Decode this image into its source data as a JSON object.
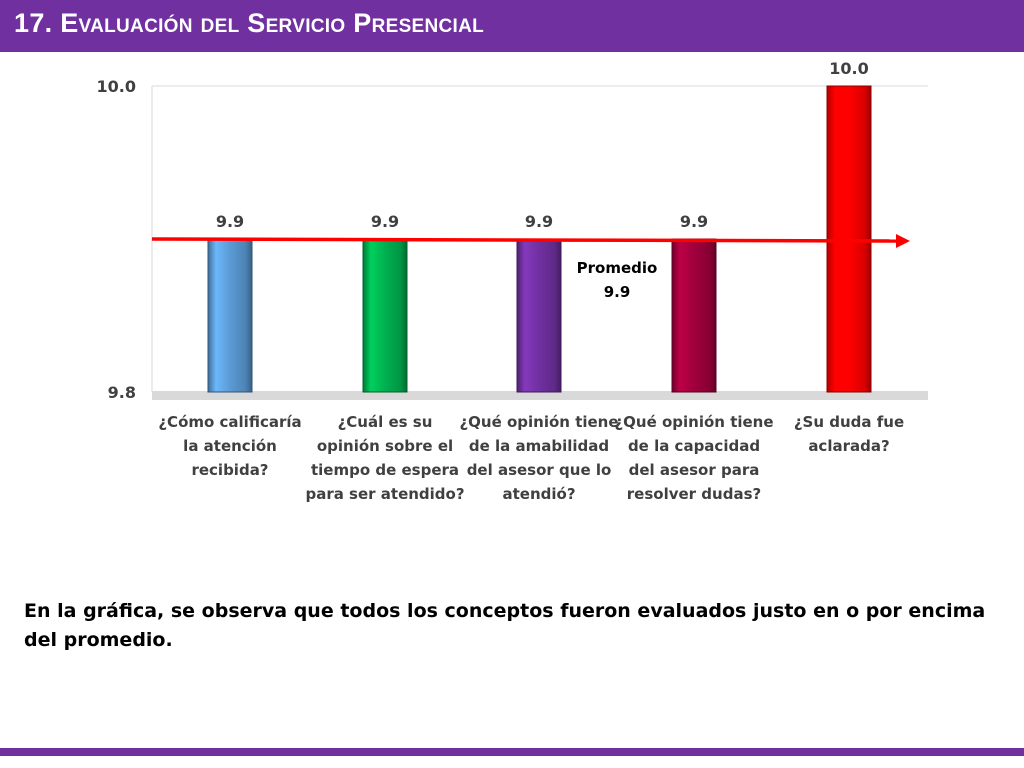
{
  "header": {
    "title": "17. Evaluación del Servicio Presencial"
  },
  "summary": "En la gráfica, se observa que todos los conceptos fueron evaluados justo en o por encima del promedio.",
  "colors": {
    "header": "#7030a0",
    "average_line": "#ff0000",
    "bars": [
      "#5b9bd5",
      "#00b050",
      "#7030a0",
      "#a0003c",
      "#ff0000"
    ]
  },
  "chart_data": {
    "type": "bar",
    "categories": [
      "¿Cómo calificaría la atención recibida?",
      "¿Cuál es su opinión sobre el tiempo de espera para ser atendido?",
      "¿Qué opinión tiene de la amabilidad del asesor que lo atendió?",
      "¿Qué opinión tiene de la capacidad del asesor para resolver dudas?",
      "¿Su duda fue aclarada?"
    ],
    "values": [
      9.9,
      9.9,
      9.9,
      9.9,
      10.0
    ],
    "value_labels": [
      "9.9",
      "9.9",
      "9.9",
      "9.9",
      "10.0"
    ],
    "ylim": [
      9.8,
      10.0
    ],
    "y_ticks": [
      "9.8",
      "10.0"
    ],
    "average": {
      "label": "Promedio",
      "value_label": "9.9",
      "value": 9.9
    },
    "grid": false,
    "legend": "none"
  }
}
